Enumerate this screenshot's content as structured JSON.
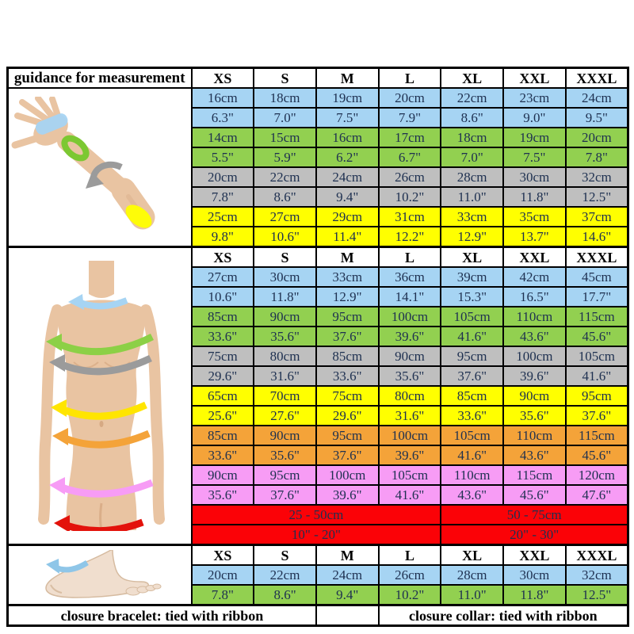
{
  "colors": {
    "blue": "#A6D4F3",
    "green": "#92D050",
    "gray": "#BFBFBF",
    "yellow": "#FFFF00",
    "orange": "#F4A339",
    "pink": "#F79CF5",
    "red": "#FB0207",
    "value_text": "#1E3050",
    "border": "#000000",
    "skin": "#E9C4A2",
    "skin_shade": "#D6A983"
  },
  "header": {
    "guidance_label": "guidance for measurement"
  },
  "size_headers": [
    "XS",
    "S",
    "M",
    "L",
    "XL",
    "XXL",
    "XXXL"
  ],
  "arm_section": {
    "image": "arm-with-measurement-bands",
    "rows": [
      {
        "band": "blue",
        "values": [
          "16cm",
          "18cm",
          "19cm",
          "20cm",
          "22cm",
          "23cm",
          "24cm"
        ]
      },
      {
        "band": "blue",
        "values": [
          "6.3\"",
          "7.0\"",
          "7.5\"",
          "7.9\"",
          "8.6\"",
          "9.0\"",
          "9.5\""
        ]
      },
      {
        "band": "green",
        "values": [
          "14cm",
          "15cm",
          "16cm",
          "17cm",
          "18cm",
          "19cm",
          "20cm"
        ]
      },
      {
        "band": "green",
        "values": [
          "5.5\"",
          "5.9\"",
          "6.2\"",
          "6.7\"",
          "7.0\"",
          "7.5\"",
          "7.8\""
        ]
      },
      {
        "band": "gray",
        "values": [
          "20cm",
          "22cm",
          "24cm",
          "26cm",
          "28cm",
          "30cm",
          "32cm"
        ]
      },
      {
        "band": "gray",
        "values": [
          "7.8\"",
          "8.6\"",
          "9.4\"",
          "10.2\"",
          "11.0\"",
          "11.8\"",
          "12.5\""
        ]
      },
      {
        "band": "yellow",
        "values": [
          "25cm",
          "27cm",
          "29cm",
          "31cm",
          "33cm",
          "35cm",
          "37cm"
        ]
      },
      {
        "band": "yellow",
        "values": [
          "9.8\"",
          "10.6\"",
          "11.4\"",
          "12.2\"",
          "12.9\"",
          "13.7\"",
          "14.6\""
        ]
      }
    ]
  },
  "body_section": {
    "image": "female-torso-with-measurement-arrows",
    "rows": [
      {
        "band": "blue",
        "values": [
          "27cm",
          "30cm",
          "33cm",
          "36cm",
          "39cm",
          "42cm",
          "45cm"
        ]
      },
      {
        "band": "blue",
        "values": [
          "10.6\"",
          "11.8\"",
          "12.9\"",
          "14.1\"",
          "15.3\"",
          "16.5\"",
          "17.7\""
        ]
      },
      {
        "band": "green",
        "values": [
          "85cm",
          "90cm",
          "95cm",
          "100cm",
          "105cm",
          "110cm",
          "115cm"
        ]
      },
      {
        "band": "green",
        "values": [
          "33.6\"",
          "35.6\"",
          "37.6\"",
          "39.6\"",
          "41.6\"",
          "43.6\"",
          "45.6\""
        ]
      },
      {
        "band": "gray",
        "values": [
          "75cm",
          "80cm",
          "85cm",
          "90cm",
          "95cm",
          "100cm",
          "105cm"
        ]
      },
      {
        "band": "gray",
        "values": [
          "29.6\"",
          "31.6\"",
          "33.6\"",
          "35.6\"",
          "37.6\"",
          "39.6\"",
          "41.6\""
        ]
      },
      {
        "band": "yellow",
        "values": [
          "65cm",
          "70cm",
          "75cm",
          "80cm",
          "85cm",
          "90cm",
          "95cm"
        ]
      },
      {
        "band": "yellow",
        "values": [
          "25.6\"",
          "27.6\"",
          "29.6\"",
          "31.6\"",
          "33.6\"",
          "35.6\"",
          "37.6\""
        ]
      },
      {
        "band": "orange",
        "values": [
          "85cm",
          "90cm",
          "95cm",
          "100cm",
          "105cm",
          "110cm",
          "115cm"
        ]
      },
      {
        "band": "orange",
        "values": [
          "33.6\"",
          "35.6\"",
          "37.6\"",
          "39.6\"",
          "41.6\"",
          "43.6\"",
          "45.6\""
        ]
      },
      {
        "band": "pink",
        "values": [
          "90cm",
          "95cm",
          "100cm",
          "105cm",
          "110cm",
          "115cm",
          "120cm"
        ]
      },
      {
        "band": "pink",
        "values": [
          "35.6\"",
          "37.6\"",
          "39.6\"",
          "41.6\"",
          "43.6\"",
          "45.6\"",
          "47.6\""
        ]
      }
    ],
    "range_rows": [
      {
        "band": "red",
        "left": "25 - 50cm",
        "right": "50 - 75cm"
      },
      {
        "band": "red",
        "left": "10\" - 20\"",
        "right": "20\" - 30\""
      }
    ]
  },
  "foot_section": {
    "image": "foot-with-ankle-arrow",
    "rows": [
      {
        "band": "blue",
        "values": [
          "20cm",
          "22cm",
          "24cm",
          "26cm",
          "28cm",
          "30cm",
          "32cm"
        ]
      },
      {
        "band": "green",
        "values": [
          "7.8\"",
          "8.6\"",
          "9.4\"",
          "10.2\"",
          "11.0\"",
          "11.8\"",
          "12.5\""
        ]
      }
    ]
  },
  "footer": {
    "closure_bracelet": "closure bracelet: tied with ribbon",
    "closure_collar": "closure collar: tied with ribbon"
  }
}
